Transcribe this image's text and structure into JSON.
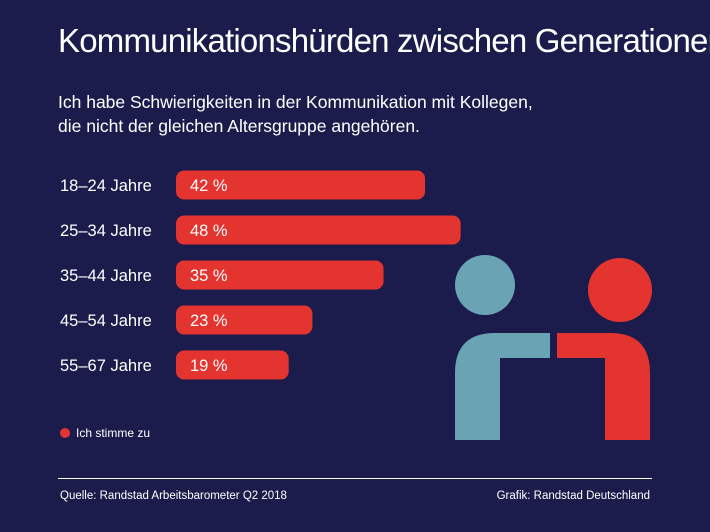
{
  "title": "Kommunikationshürden zwischen Generationen",
  "subtitle_lines": [
    "Ich habe Schwierigkeiten in der Kommunikation mit Kollegen,",
    "die nicht der gleichen Altersgruppe angehören."
  ],
  "chart_data": {
    "type": "bar",
    "orientation": "horizontal",
    "title": "Kommunikationshürden zwischen Generationen",
    "categories": [
      "18–24 Jahre",
      "25–34 Jahre",
      "35–44 Jahre",
      "45–54 Jahre",
      "55–67 Jahre"
    ],
    "series": [
      {
        "name": "Ich stimme zu",
        "values": [
          42,
          48,
          35,
          23,
          19
        ],
        "labels": [
          "42 %",
          "48 %",
          "35 %",
          "23 %",
          "19 %"
        ]
      }
    ],
    "xlim": [
      0,
      100
    ],
    "grid": false,
    "legend": "bottom-left"
  },
  "legend": {
    "label": "Ich stimme zu"
  },
  "footer": {
    "source": "Quelle: Randstad Arbeitsbarometer Q2 2018",
    "credit": "Grafik: Randstad Deutschland"
  },
  "colors": {
    "background": "#1b1c4b",
    "bar": "#e3342f",
    "figure_left": "#6aa3b4",
    "figure_right": "#e3342f",
    "text": "#ffffff"
  },
  "illustration": {
    "icon": "two-people-icon"
  }
}
